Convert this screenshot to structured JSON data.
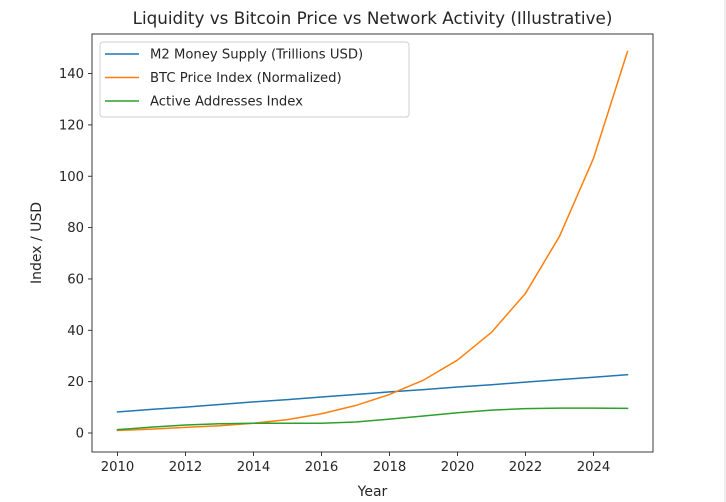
{
  "chart_data": {
    "type": "line",
    "title": "Liquidity vs Bitcoin Price vs Network Activity (Illustrative)",
    "xlabel": "Year",
    "ylabel": "Index / USD",
    "x": [
      2010,
      2011,
      2012,
      2013,
      2014,
      2015,
      2016,
      2017,
      2018,
      2019,
      2020,
      2021,
      2022,
      2023,
      2024,
      2025
    ],
    "xlim": [
      2009.25,
      2025.75
    ],
    "ylim": [
      -7.4,
      155.4
    ],
    "xticks": [
      2010,
      2012,
      2014,
      2016,
      2018,
      2020,
      2022,
      2024
    ],
    "xtick_labels": [
      "2010",
      "2012",
      "2014",
      "2016",
      "2018",
      "2020",
      "2022",
      "2024"
    ],
    "yticks": [
      0,
      20,
      40,
      60,
      80,
      100,
      120,
      140
    ],
    "ytick_labels": [
      "0",
      "20",
      "40",
      "60",
      "80",
      "100",
      "120",
      "140"
    ],
    "grid": false,
    "legend_position": "upper-left",
    "series": [
      {
        "name": "M2 Money Supply (Trillions USD)",
        "color": "#1f77b4",
        "values": [
          8.2,
          9.2,
          10.1,
          11.1,
          12.1,
          13.0,
          14.0,
          15.0,
          16.0,
          16.9,
          17.9,
          18.8,
          19.8,
          20.8,
          21.7,
          22.7
        ]
      },
      {
        "name": "BTC Price Index (Normalized)",
        "color": "#ff7f0e",
        "values": [
          1.0,
          1.5,
          2.2,
          2.8,
          3.8,
          5.2,
          7.5,
          10.7,
          15.0,
          20.6,
          28.4,
          39.2,
          54.4,
          76.6,
          107.0,
          148.6
        ]
      },
      {
        "name": "Active Addresses Index",
        "color": "#2ca02c",
        "values": [
          1.3,
          2.3,
          3.1,
          3.6,
          3.8,
          3.8,
          3.8,
          4.3,
          5.4,
          6.6,
          7.9,
          8.9,
          9.5,
          9.7,
          9.7,
          9.6
        ]
      }
    ]
  }
}
